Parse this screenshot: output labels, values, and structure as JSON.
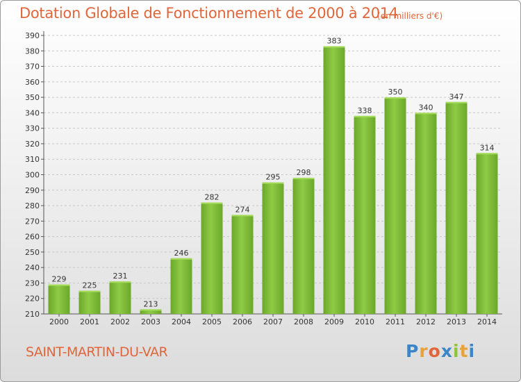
{
  "title": "Dotation Globale de Fonctionnement de 2000 à 2014",
  "subtitle": "(en milliers d'€)",
  "city": "SAINT-MARTIN-DU-VAR",
  "logo": {
    "letters": [
      "P",
      "r",
      "o",
      "x",
      "i",
      "t",
      "i"
    ],
    "colors": [
      "#3a86c8",
      "#e8a23a",
      "#e0663a",
      "#3a86c8",
      "#8cc43a",
      "#e8a23a",
      "#3a86c8"
    ]
  },
  "colors": {
    "title": "#e0663a",
    "bar": "#7cbb35",
    "bar_light": "#a6dc5c",
    "grid": "#c8c8c8"
  },
  "chart_data": {
    "type": "bar",
    "title": "Dotation Globale de Fonctionnement de 2000 à 2014",
    "subtitle": "(en milliers d'€)",
    "categories": [
      "2000",
      "2001",
      "2002",
      "2003",
      "2004",
      "2005",
      "2006",
      "2007",
      "2008",
      "2009",
      "2010",
      "2011",
      "2012",
      "2013",
      "2014"
    ],
    "values": [
      229,
      225,
      231,
      213,
      246,
      282,
      274,
      295,
      298,
      383,
      338,
      350,
      340,
      347,
      314
    ],
    "ylim": [
      210,
      390
    ],
    "yticks": [
      210,
      220,
      230,
      240,
      250,
      260,
      270,
      280,
      290,
      300,
      310,
      320,
      330,
      340,
      350,
      360,
      370,
      380,
      390
    ],
    "grid": true,
    "xlabel": "",
    "ylabel": ""
  }
}
